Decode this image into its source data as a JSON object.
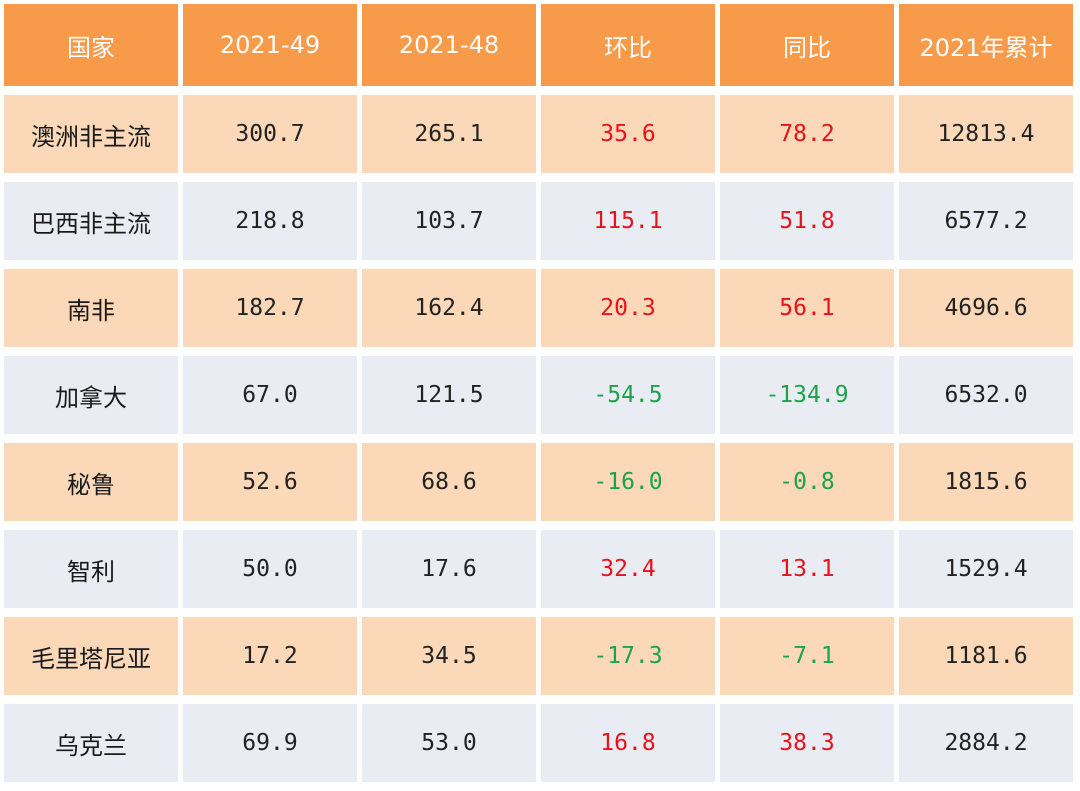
{
  "headers": [
    "国家",
    "2021-49",
    "2021-48",
    "环比",
    "同比",
    "2021年累计"
  ],
  "rows": [
    {
      "country": "澳洲非主流",
      "w49": "300.7",
      "w48": "265.1",
      "mom": "35.6",
      "yoy": "78.2",
      "ytd": "12813.4"
    },
    {
      "country": "巴西非主流",
      "w49": "218.8",
      "w48": "103.7",
      "mom": "115.1",
      "yoy": "51.8",
      "ytd": "6577.2"
    },
    {
      "country": "南非",
      "w49": "182.7",
      "w48": "162.4",
      "mom": "20.3",
      "yoy": "56.1",
      "ytd": "4696.6"
    },
    {
      "country": "加拿大",
      "w49": "67.0",
      "w48": "121.5",
      "mom": "-54.5",
      "yoy": "-134.9",
      "ytd": "6532.0"
    },
    {
      "country": "秘鲁",
      "w49": "52.6",
      "w48": "68.6",
      "mom": "-16.0",
      "yoy": "-0.8",
      "ytd": "1815.6"
    },
    {
      "country": "智利",
      "w49": "50.0",
      "w48": "17.6",
      "mom": "32.4",
      "yoy": "13.1",
      "ytd": "1529.4"
    },
    {
      "country": "毛里塔尼亚",
      "w49": "17.2",
      "w48": "34.5",
      "mom": "-17.3",
      "yoy": "-7.1",
      "ytd": "1181.6"
    },
    {
      "country": "乌克兰",
      "w49": "69.9",
      "w48": "53.0",
      "mom": "16.8",
      "yoy": "38.3",
      "ytd": "2884.2"
    }
  ],
  "colors": {
    "header_bg": "#f79a4a",
    "row_odd_bg": "#fbd8b8",
    "row_even_bg": "#e9edf3",
    "positive": "#e8121a",
    "negative": "#1ba24a"
  }
}
